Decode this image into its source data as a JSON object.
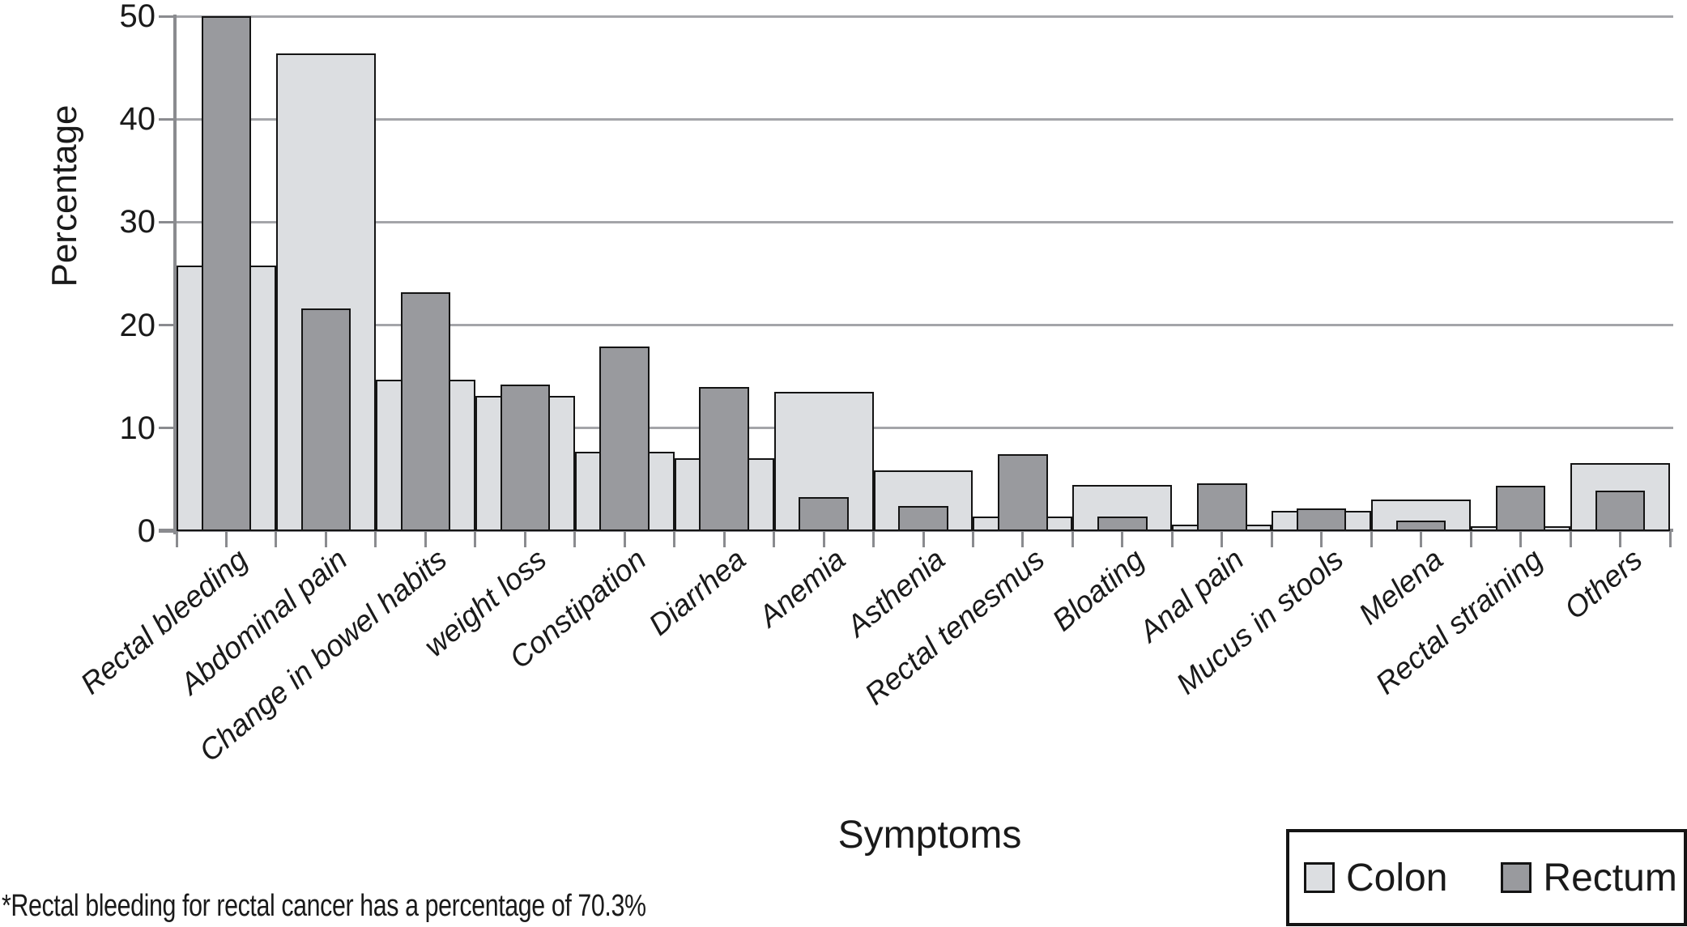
{
  "chart_data": {
    "type": "bar",
    "bar_style": "overlapped-grouped",
    "categories": [
      "Rectal bleeding",
      "Abdominal pain",
      "Change in bowel habits",
      "weight loss",
      "Constipation",
      "Diarrhea",
      "Anemia",
      "Asthenia",
      "Rectal tenesmus",
      "Bloating",
      "Anal pain",
      "Mucus in stools",
      "Melena",
      "Rectal straining",
      "Others"
    ],
    "series": [
      {
        "name": "Colon",
        "color": "#dcdee1",
        "values": [
          25.8,
          46.4,
          14.7,
          13.1,
          7.7,
          7.1,
          13.5,
          5.9,
          1.4,
          4.5,
          0.6,
          2.0,
          3.1,
          0.3,
          6.6
        ]
      },
      {
        "name": "Rectum",
        "color": "#999a9e",
        "values": [
          70.3,
          21.6,
          23.2,
          14.2,
          17.9,
          14.0,
          3.3,
          2.4,
          7.5,
          1.4,
          4.6,
          2.2,
          1.0,
          4.4,
          3.9
        ]
      }
    ],
    "display_cap_note": "Rectum value for Rectal bleeding (70.3) is drawn clipped at the 50 axis maximum",
    "xlabel": "Symptoms",
    "ylabel": "Percentage",
    "ylim": [
      0,
      50
    ],
    "yticks": [
      0,
      10,
      20,
      30,
      40,
      50
    ],
    "grid": true,
    "legend_position": "bottom-right",
    "outline_color": "#141414",
    "gridline_color": "#a4a5a9",
    "axis_color": "#8a8b8f"
  },
  "legend": {
    "items": [
      {
        "label": "Colon",
        "color": "#dcdee1"
      },
      {
        "label": "Rectum",
        "color": "#999a9e"
      }
    ]
  },
  "footnote": "*Rectal bleeding for rectal cancer has a percentage of 70.3%"
}
